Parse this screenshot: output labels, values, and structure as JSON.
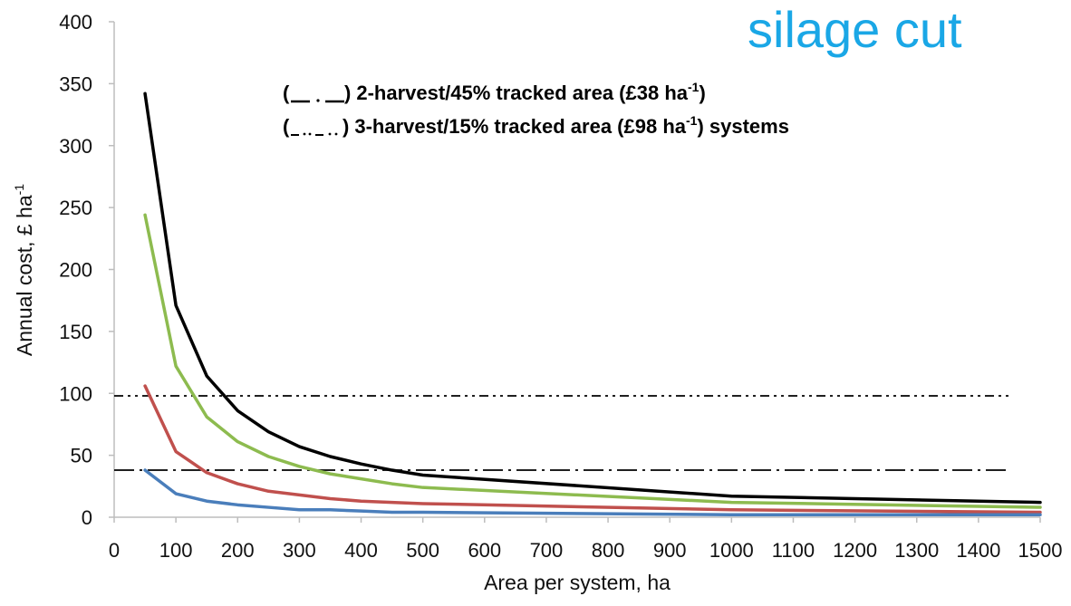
{
  "banner": {
    "text": "silage cut",
    "color": "#1aa7e6"
  },
  "annotations": {
    "line1": {
      "open": "(",
      "close": ")",
      "text": "2-harvest/45% tracked area (£38 ha",
      "sup": "-1",
      "tail": ")"
    },
    "line2": {
      "open": "(",
      "close": ")",
      "text": "3-harvest/15% tracked area (£98 ha",
      "sup": "-1",
      "tail": ") systems"
    }
  },
  "chart_data": {
    "type": "line",
    "xlabel": "Area per system, ha",
    "ylabel": "Annual cost, £ ha",
    "ylabel_sup": "-1",
    "xlim": [
      0,
      1500
    ],
    "ylim": [
      0,
      400
    ],
    "x_ticks": [
      0,
      100,
      200,
      300,
      400,
      500,
      600,
      700,
      800,
      900,
      1000,
      1100,
      1200,
      1300,
      1400,
      1500
    ],
    "y_ticks": [
      0,
      50,
      100,
      150,
      200,
      250,
      300,
      350,
      400
    ],
    "grid": false,
    "x": [
      50,
      100,
      150,
      200,
      250,
      300,
      350,
      400,
      450,
      500,
      1000,
      1500
    ],
    "series": [
      {
        "color": "#000000",
        "values": [
          342,
          171,
          114,
          86,
          69,
          57,
          49,
          43,
          38,
          34,
          17,
          12
        ]
      },
      {
        "color": "#8dbb4f",
        "values": [
          244,
          122,
          81,
          61,
          49,
          41,
          35,
          31,
          27,
          24,
          12,
          8
        ]
      },
      {
        "color": "#c0504d",
        "values": [
          106,
          53,
          36,
          27,
          21,
          18,
          15,
          13,
          12,
          11,
          6,
          4
        ]
      },
      {
        "color": "#4a7ebb",
        "values": [
          38,
          19,
          13,
          10,
          8,
          6,
          6,
          5,
          4,
          4,
          2,
          2
        ]
      }
    ],
    "reference_lines": [
      {
        "y": 38,
        "style": "dash-dot",
        "color": "#000000"
      },
      {
        "y": 98,
        "style": "dash-dot-dot",
        "color": "#000000"
      }
    ]
  }
}
